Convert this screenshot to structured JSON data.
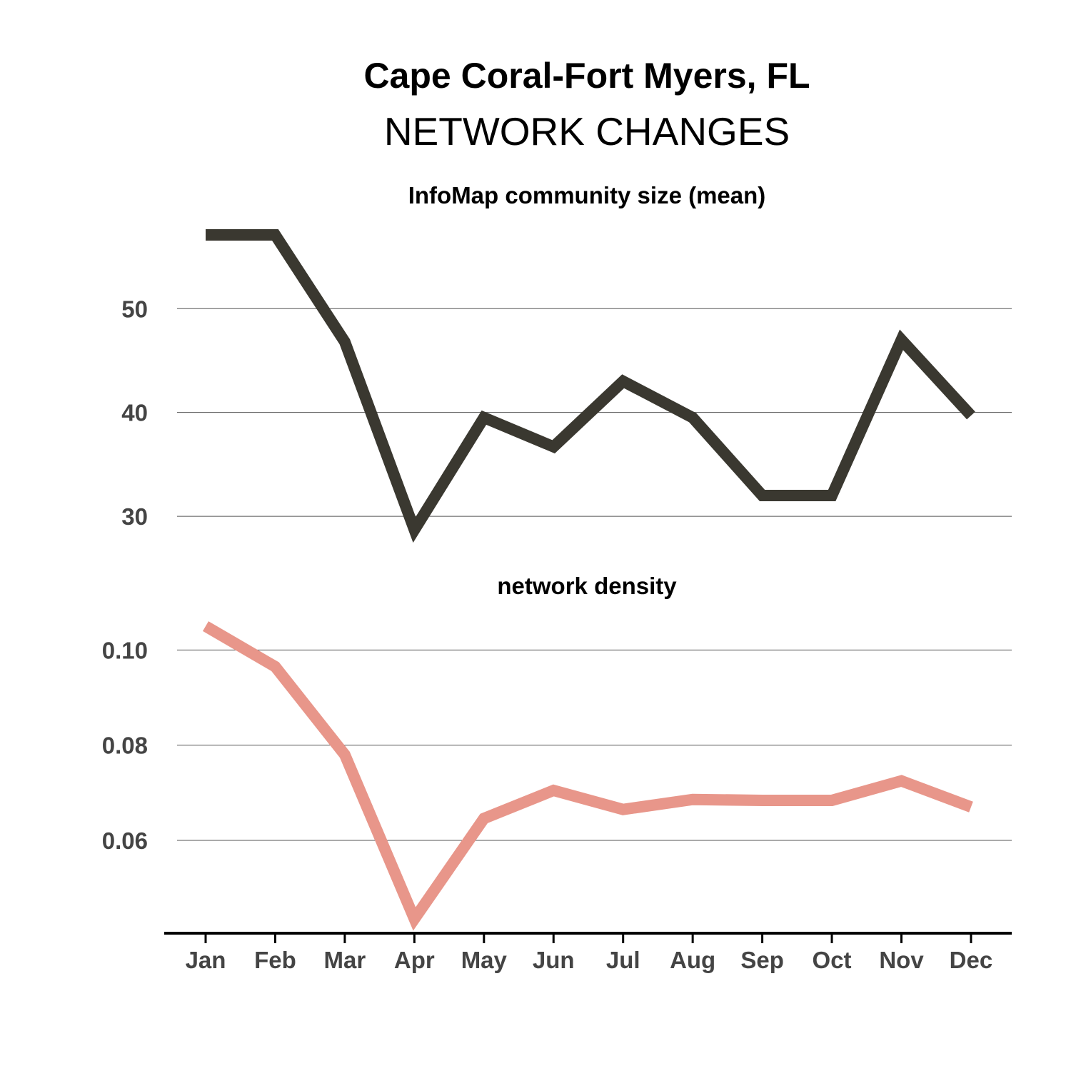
{
  "chart_data": [
    {
      "type": "line",
      "title": "Cape Coral-Fort Myers, FL",
      "subtitle": "NETWORK CHANGES",
      "panel_title": "InfoMap community size (mean)",
      "categories": [
        "Jan",
        "Feb",
        "Mar",
        "Apr",
        "May",
        "Jun",
        "Jul",
        "Aug",
        "Sep",
        "Oct",
        "Nov",
        "Dec"
      ],
      "series": [
        {
          "color": "#3a3830",
          "values": [
            57.1,
            57.1,
            46.8,
            28.7,
            39.5,
            36.7,
            43.0,
            39.5,
            32.0,
            32.0,
            47.0,
            39.7
          ]
        }
      ],
      "yticks": [
        30,
        40,
        50
      ],
      "ytick_labels": [
        "30",
        "40",
        "50"
      ],
      "ylim": [
        28.7,
        57.1
      ],
      "grid": true
    },
    {
      "type": "line",
      "panel_title": "network density",
      "categories": [
        "Jan",
        "Feb",
        "Mar",
        "Apr",
        "May",
        "Jun",
        "Jul",
        "Aug",
        "Sep",
        "Oct",
        "Nov",
        "Dec"
      ],
      "series": [
        {
          "color": "#e8968a",
          "values": [
            0.105,
            0.0965,
            0.078,
            0.0435,
            0.0646,
            0.0705,
            0.0665,
            0.0686,
            0.0684,
            0.0684,
            0.0725,
            0.067
          ]
        }
      ],
      "yticks": [
        0.06,
        0.08,
        0.1
      ],
      "ytick_labels": [
        "0.06",
        "0.08",
        "0.10"
      ],
      "ylim": [
        0.0435,
        0.105
      ],
      "grid": true
    }
  ]
}
